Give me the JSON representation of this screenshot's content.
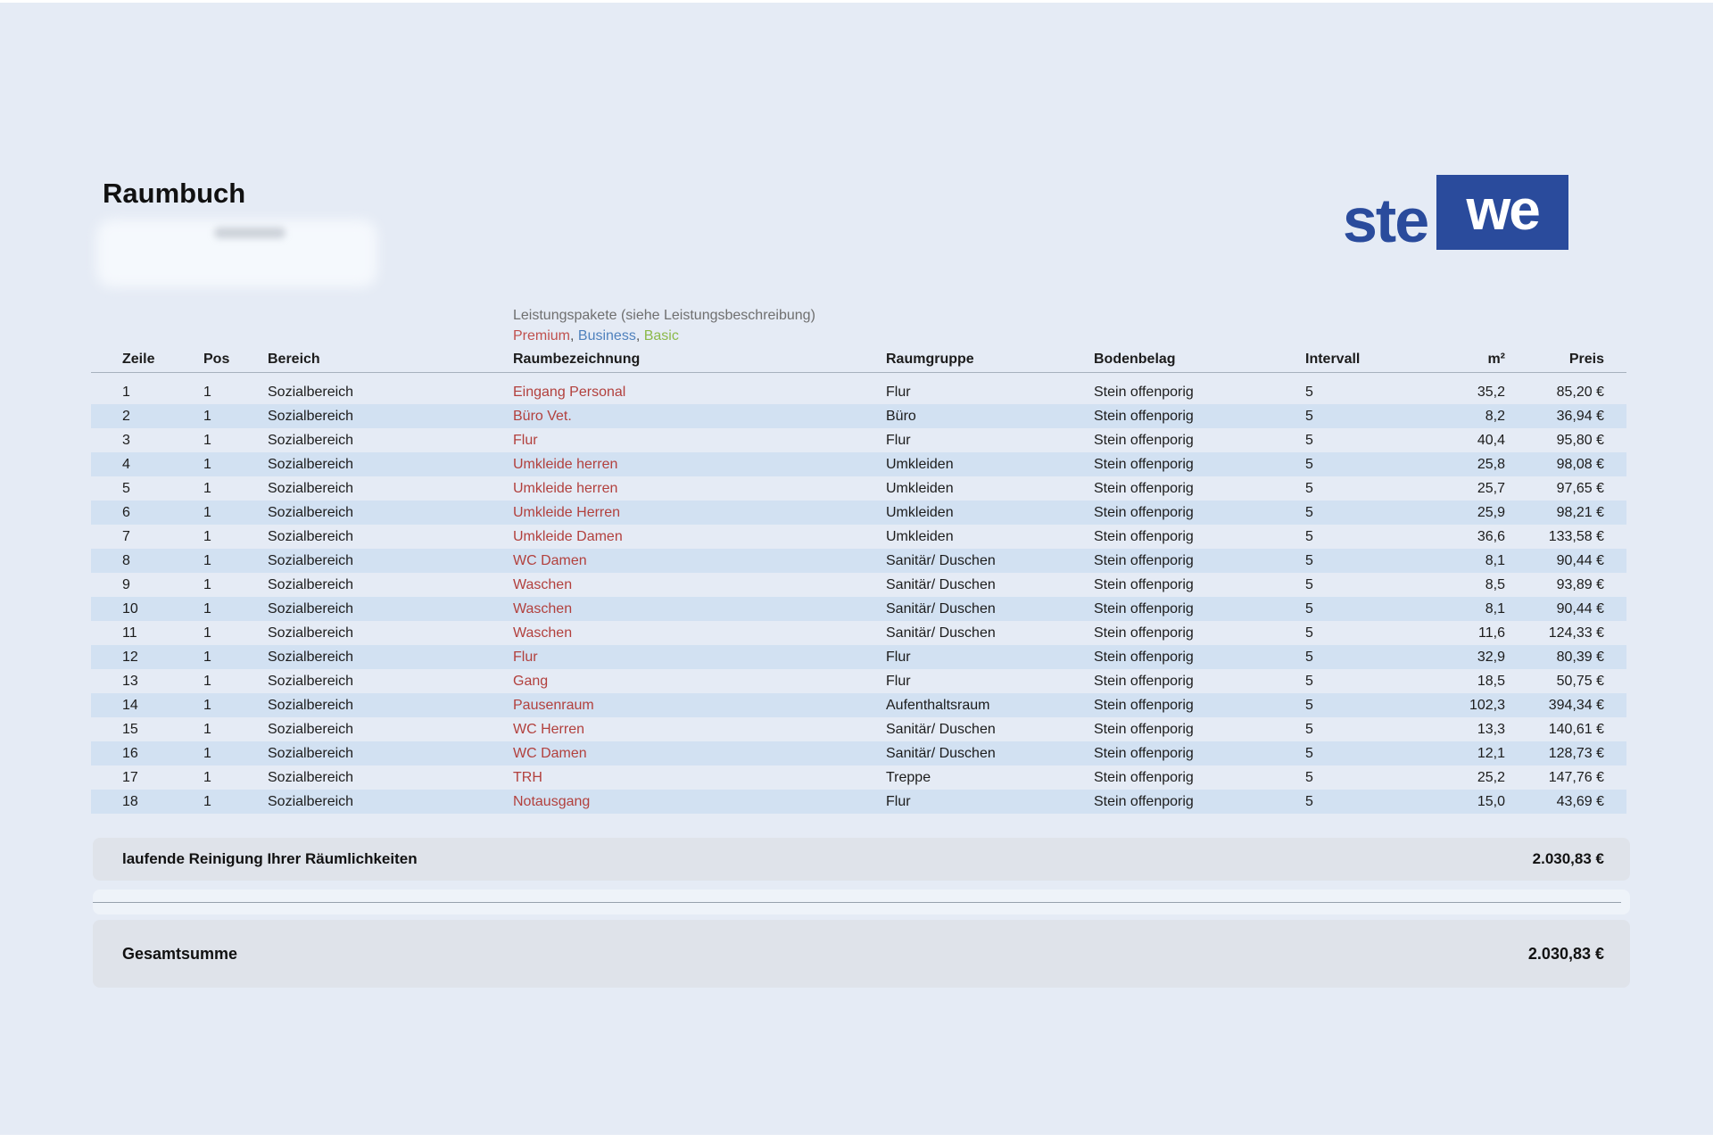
{
  "page": {
    "title": "Raumbuch"
  },
  "logo": {
    "text_outside": "ste",
    "text_boxed": "we"
  },
  "colors": {
    "logo_blue": "#2a4b9c",
    "row_red": "#b2403d",
    "stripe": "#d2e1f2",
    "premium": "#c0504d",
    "business": "#4f81bd",
    "basic": "#8cb94a"
  },
  "packages": {
    "heading": "Leistungspakete (siehe Leistungsbeschreibung)",
    "separator": ", ",
    "items": [
      {
        "label": "Premium",
        "color_key": "premium"
      },
      {
        "label": "Business",
        "color_key": "business"
      },
      {
        "label": "Basic",
        "color_key": "basic"
      }
    ]
  },
  "table": {
    "columns": [
      "Zeile",
      "Pos",
      "Bereich",
      "Raumbezeichnung",
      "Raumgruppe",
      "Bodenbelag",
      "Intervall",
      "m²",
      "Preis"
    ],
    "rows": [
      {
        "zeile": "1",
        "pos": "1",
        "bereich": "Sozialbereich",
        "raum": "Eingang Personal",
        "gruppe": "Flur",
        "boden": "Stein offenporig",
        "intervall": "5",
        "qm": "35,2",
        "preis": "85,20 €"
      },
      {
        "zeile": "2",
        "pos": "1",
        "bereich": "Sozialbereich",
        "raum": "Büro Vet.",
        "gruppe": "Büro",
        "boden": "Stein offenporig",
        "intervall": "5",
        "qm": "8,2",
        "preis": "36,94 €"
      },
      {
        "zeile": "3",
        "pos": "1",
        "bereich": "Sozialbereich",
        "raum": "Flur",
        "gruppe": "Flur",
        "boden": "Stein offenporig",
        "intervall": "5",
        "qm": "40,4",
        "preis": "95,80 €"
      },
      {
        "zeile": "4",
        "pos": "1",
        "bereich": "Sozialbereich",
        "raum": "Umkleide herren",
        "gruppe": "Umkleiden",
        "boden": "Stein offenporig",
        "intervall": "5",
        "qm": "25,8",
        "preis": "98,08 €"
      },
      {
        "zeile": "5",
        "pos": "1",
        "bereich": "Sozialbereich",
        "raum": "Umkleide herren",
        "gruppe": "Umkleiden",
        "boden": "Stein offenporig",
        "intervall": "5",
        "qm": "25,7",
        "preis": "97,65 €"
      },
      {
        "zeile": "6",
        "pos": "1",
        "bereich": "Sozialbereich",
        "raum": "Umkleide Herren",
        "gruppe": "Umkleiden",
        "boden": "Stein offenporig",
        "intervall": "5",
        "qm": "25,9",
        "preis": "98,21 €"
      },
      {
        "zeile": "7",
        "pos": "1",
        "bereich": "Sozialbereich",
        "raum": "Umkleide Damen",
        "gruppe": "Umkleiden",
        "boden": "Stein offenporig",
        "intervall": "5",
        "qm": "36,6",
        "preis": "133,58 €"
      },
      {
        "zeile": "8",
        "pos": "1",
        "bereich": "Sozialbereich",
        "raum": "WC Damen",
        "gruppe": "Sanitär/ Duschen",
        "boden": "Stein offenporig",
        "intervall": "5",
        "qm": "8,1",
        "preis": "90,44 €"
      },
      {
        "zeile": "9",
        "pos": "1",
        "bereich": "Sozialbereich",
        "raum": "Waschen",
        "gruppe": "Sanitär/ Duschen",
        "boden": "Stein offenporig",
        "intervall": "5",
        "qm": "8,5",
        "preis": "93,89 €"
      },
      {
        "zeile": "10",
        "pos": "1",
        "bereich": "Sozialbereich",
        "raum": "Waschen",
        "gruppe": "Sanitär/ Duschen",
        "boden": "Stein offenporig",
        "intervall": "5",
        "qm": "8,1",
        "preis": "90,44 €"
      },
      {
        "zeile": "11",
        "pos": "1",
        "bereich": "Sozialbereich",
        "raum": "Waschen",
        "gruppe": "Sanitär/ Duschen",
        "boden": "Stein offenporig",
        "intervall": "5",
        "qm": "11,6",
        "preis": "124,33 €"
      },
      {
        "zeile": "12",
        "pos": "1",
        "bereich": "Sozialbereich",
        "raum": "Flur",
        "gruppe": "Flur",
        "boden": "Stein offenporig",
        "intervall": "5",
        "qm": "32,9",
        "preis": "80,39 €"
      },
      {
        "zeile": "13",
        "pos": "1",
        "bereich": "Sozialbereich",
        "raum": "Gang",
        "gruppe": "Flur",
        "boden": "Stein offenporig",
        "intervall": "5",
        "qm": "18,5",
        "preis": "50,75 €"
      },
      {
        "zeile": "14",
        "pos": "1",
        "bereich": "Sozialbereich",
        "raum": "Pausenraum",
        "gruppe": "Aufenthaltsraum",
        "boden": "Stein offenporig",
        "intervall": "5",
        "qm": "102,3",
        "preis": "394,34 €"
      },
      {
        "zeile": "15",
        "pos": "1",
        "bereich": "Sozialbereich",
        "raum": "WC Herren",
        "gruppe": "Sanitär/ Duschen",
        "boden": "Stein offenporig",
        "intervall": "5",
        "qm": "13,3",
        "preis": "140,61 €"
      },
      {
        "zeile": "16",
        "pos": "1",
        "bereich": "Sozialbereich",
        "raum": "WC Damen",
        "gruppe": "Sanitär/ Duschen",
        "boden": "Stein offenporig",
        "intervall": "5",
        "qm": "12,1",
        "preis": "128,73 €"
      },
      {
        "zeile": "17",
        "pos": "1",
        "bereich": "Sozialbereich",
        "raum": "TRH",
        "gruppe": "Treppe",
        "boden": "Stein offenporig",
        "intervall": "5",
        "qm": "25,2",
        "preis": "147,76 €"
      },
      {
        "zeile": "18",
        "pos": "1",
        "bereich": "Sozialbereich",
        "raum": "Notausgang",
        "gruppe": "Flur",
        "boden": "Stein offenporig",
        "intervall": "5",
        "qm": "15,0",
        "preis": "43,69 €"
      }
    ]
  },
  "summary": {
    "running_label": "laufende Reinigung Ihrer Räumlichkeiten",
    "running_value": "2.030,83 €",
    "total_label": "Gesamtsumme",
    "total_value": "2.030,83 €"
  }
}
